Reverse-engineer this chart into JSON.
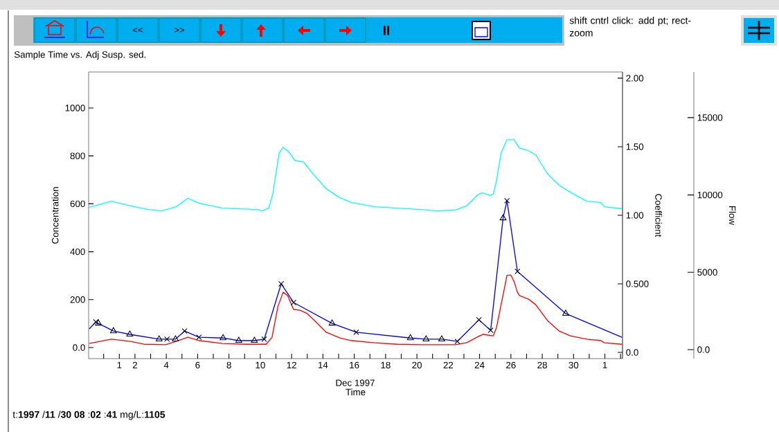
{
  "chart_data": {
    "type": "line",
    "title": "Sample Time vs. Adj Susp. sed.",
    "xlabel": "Time",
    "ylabel": "Concentration",
    "y2label": "Coefficient",
    "y3label": "Flow",
    "annotations": [
      "<<",
      ">>",
      "II",
      "shift cntrl click: add pt; rect-zoom",
      "Dec 1997",
      "t:**1997**  /**11** /**30**  **08** :**02** :**41**  mg/L:**1105**"
    ],
    "xlim": [
      "1997-11-29T01:00",
      "1998-01-02T03:00"
    ],
    "ylim": [
      -46,
      1150
    ],
    "y2lim": [
      -0.045,
      2.045
    ],
    "y3lim": [
      -580,
      17950
    ],
    "xticks": [
      {
        "value": "1997-11-30",
        "label": null
      },
      {
        "value": "1997-12-01",
        "label": "1"
      },
      {
        "value": "1997-12-02",
        "label": "2"
      },
      {
        "value": "1997-12-03",
        "label": null
      },
      {
        "value": "1997-12-04",
        "label": "4"
      },
      {
        "value": "1997-12-05",
        "label": null
      },
      {
        "value": "1997-12-06",
        "label": "6"
      },
      {
        "value": "1997-12-07",
        "label": null
      },
      {
        "value": "1997-12-08",
        "label": "8"
      },
      {
        "value": "1997-12-09",
        "label": null
      },
      {
        "value": "1997-12-10",
        "label": "10"
      },
      {
        "value": "1997-12-11",
        "label": null
      },
      {
        "value": "1997-12-12",
        "label": "12"
      },
      {
        "value": "1997-12-13",
        "label": null
      },
      {
        "value": "1997-12-14",
        "label": "14"
      },
      {
        "value": "1997-12-15",
        "label": null
      },
      {
        "value": "1997-12-16",
        "label": "16"
      },
      {
        "value": "1997-12-17",
        "label": null
      },
      {
        "value": "1997-12-18",
        "label": "18"
      },
      {
        "value": "1997-12-19",
        "label": null
      },
      {
        "value": "1997-12-20",
        "label": "20"
      },
      {
        "value": "1997-12-21",
        "label": null
      },
      {
        "value": "1997-12-22",
        "label": "22"
      },
      {
        "value": "1997-12-23",
        "label": null
      },
      {
        "value": "1997-12-24",
        "label": "24"
      },
      {
        "value": "1997-12-25",
        "label": null
      },
      {
        "value": "1997-12-26",
        "label": "26"
      },
      {
        "value": "1997-12-27",
        "label": null
      },
      {
        "value": "1997-12-28",
        "label": "28"
      },
      {
        "value": "1997-12-29",
        "label": null
      },
      {
        "value": "1997-12-30",
        "label": "30"
      },
      {
        "value": "1997-12-31",
        "label": null
      },
      {
        "value": "1998-01-01",
        "label": "1"
      },
      {
        "value": "1998-01-02",
        "label": null
      }
    ],
    "yticks": [
      {
        "value": 0,
        "label": "0.0"
      },
      200,
      400,
      600,
      800,
      1000
    ],
    "y2ticks": [
      {
        "value": 0,
        "label": "0.0"
      },
      {
        "value": 0.5,
        "label": "0.500"
      },
      {
        "value": 1,
        "label": "1.00"
      },
      {
        "value": 1.5,
        "label": "1.50"
      },
      {
        "value": 2,
        "label": "2.00"
      }
    ],
    "y3ticks": [
      {
        "value": 0,
        "label": "0.0"
      },
      5000,
      10000,
      15000
    ],
    "series": [
      {
        "axis": "y3",
        "color": "#00ffff",
        "marker": "none",
        "x": [
          "1997-11-29T02:00",
          "1997-11-30T12:00",
          "1997-12-01T17:00",
          "1997-12-02T20:00",
          "1997-12-03T17:00",
          "1997-12-04T15:00",
          "1997-12-05T09:00",
          "1997-12-06T03:00",
          "1997-12-07T14:00",
          "1997-12-09T19:00",
          "1997-12-10T03:00",
          "1997-12-10T13:00",
          "1997-12-10T19:00",
          "1997-12-11T05:00",
          "1997-12-11T11:00",
          "1997-12-11T21:00",
          "1997-12-12T05:00",
          "1997-12-12T18:00",
          "1997-12-13T11:00",
          "1997-12-14T05:00",
          "1997-12-15T02:00",
          "1997-12-15T20:00",
          "1997-12-17T07:00",
          "1997-12-18T18:00",
          "1997-12-20T06:00",
          "1997-12-21T06:00",
          "1997-12-22T11:00",
          "1997-12-23T04:00",
          "1997-12-23T22:00",
          "1997-12-24T05:00",
          "1997-12-24T16:00",
          "1997-12-24T21:00",
          "1997-12-25T02:00",
          "1997-12-25T09:00",
          "1997-12-25T18:00",
          "1997-12-26T05:00",
          "1997-12-26T13:00",
          "1997-12-27T03:00",
          "1997-12-27T14:00",
          "1997-12-28T08:00",
          "1997-12-29T02:00",
          "1997-12-29T19:00",
          "1997-12-30T20:00",
          "1997-12-31T18:00",
          "1997-12-31T23:00",
          "1998-01-02T02:00"
        ],
        "values": [
          9200,
          9600,
          9290,
          9060,
          8970,
          9240,
          9780,
          9460,
          9150,
          9060,
          8970,
          9150,
          10040,
          12720,
          13080,
          12720,
          12230,
          12140,
          11250,
          10400,
          9820,
          9510,
          9240,
          9150,
          9060,
          8970,
          9020,
          9290,
          10040,
          10130,
          9960,
          10040,
          10940,
          12720,
          13570,
          13570,
          13030,
          12860,
          12590,
          11380,
          10620,
          10180,
          9600,
          9510,
          9240,
          9110
        ]
      },
      {
        "color": "#ff0000",
        "marker": "none",
        "x": [
          "1997-11-29T02:00",
          "1997-11-30T12:00",
          "1997-12-01T17:00",
          "1997-12-02T14:00",
          "1997-12-03T23:00",
          "1997-12-04T15:00",
          "1997-12-05T09:00",
          "1997-12-06T03:00",
          "1997-12-07T14:00",
          "1997-12-09T01:00",
          "1997-12-10T09:00",
          "1997-12-10T18:00",
          "1997-12-11T03:00",
          "1997-12-11T11:00",
          "1997-12-11T18:00",
          "1997-12-12T03:00",
          "1997-12-12T13:00",
          "1997-12-13T00:00",
          "1997-12-13T11:00",
          "1997-12-14T05:00",
          "1997-12-15T02:00",
          "1997-12-15T20:00",
          "1997-12-17T07:00",
          "1997-12-18T18:00",
          "1997-12-20T06:00",
          "1997-12-22T11:00",
          "1997-12-23T04:00",
          "1997-12-23T22:00",
          "1997-12-24T05:00",
          "1997-12-24T21:00",
          "1997-12-25T02:00",
          "1997-12-25T09:00",
          "1997-12-25T18:00",
          "1997-12-26T00:00",
          "1997-12-26T05:00",
          "1997-12-26T10:00",
          "1997-12-26T13:00",
          "1997-12-27T03:00",
          "1997-12-27T14:00",
          "1997-12-28T08:00",
          "1997-12-29T02:00",
          "1997-12-29T19:00",
          "1997-12-30T20:00",
          "1997-12-31T18:00",
          "1997-12-31T23:00",
          "1998-01-02T02:00"
        ],
        "values": [
          17,
          35,
          26,
          14,
          12,
          26,
          43,
          29,
          17,
          14,
          14,
          43,
          171,
          231,
          217,
          159,
          156,
          142,
          113,
          64,
          40,
          29,
          20,
          14,
          12,
          12,
          20,
          46,
          55,
          49,
          84,
          179,
          301,
          303,
          275,
          231,
          217,
          202,
          179,
          113,
          69,
          49,
          35,
          29,
          20,
          14
        ]
      },
      {
        "color": "#0000ff",
        "marker": "none",
        "x": [
          "1997-11-29T02:00",
          "1997-11-29T12:00",
          "1997-11-29T16:00",
          "1997-11-30T15:00",
          "1997-12-01T16:00",
          "1997-12-03T13:00",
          "1997-12-04T01:00",
          "1997-12-04T14:00",
          "1997-12-05T04:00",
          "1997-12-06T02:00",
          "1997-12-07T15:00",
          "1997-12-08T15:00",
          "1997-12-09T15:00",
          "1997-12-10T06:00",
          "1997-12-11T08:00",
          "1997-12-12T03:00",
          "1997-12-14T14:00",
          "1997-12-16T03:00",
          "1997-12-19T14:00",
          "1997-12-20T14:00",
          "1997-12-21T14:00",
          "1997-12-22T14:00",
          "1997-12-23T23:00",
          "1997-12-24T17:00",
          "1997-12-25T12:00",
          "1997-12-25T18:00",
          "1997-12-26T10:00",
          "1997-12-29T12:00",
          "1998-01-02T02:00"
        ],
        "values": [
          78,
          107,
          101,
          69,
          55,
          35,
          35,
          35,
          69,
          43,
          40,
          29,
          29,
          35,
          266,
          188,
          101,
          64,
          40,
          35,
          35,
          26,
          116,
          72,
          540,
          613,
          318,
          142,
          43
        ]
      },
      {
        "type": "scatter",
        "color": "#000000",
        "marker": "cross",
        "x": [
          "1997-11-29T12:00",
          "1997-12-04T01:00",
          "1997-12-05T04:00",
          "1997-12-06T02:00",
          "1997-12-10T06:00",
          "1997-12-11T08:00",
          "1997-12-12T03:00",
          "1997-12-16T03:00",
          "1997-12-22T14:00",
          "1997-12-23T23:00",
          "1997-12-24T17:00",
          "1997-12-25T18:00",
          "1997-12-26T10:00"
        ],
        "values": [
          107,
          35,
          69,
          43,
          35,
          266,
          188,
          64,
          26,
          116,
          72,
          613,
          318
        ]
      },
      {
        "type": "scatter",
        "color": "#000000",
        "marker": "triangle",
        "x": [
          "1997-11-29T16:00",
          "1997-11-30T15:00",
          "1997-12-01T16:00",
          "1997-12-03T13:00",
          "1997-12-04T14:00",
          "1997-12-07T15:00",
          "1997-12-08T15:00",
          "1997-12-09T15:00",
          "1997-12-14T14:00",
          "1997-12-19T14:00",
          "1997-12-20T14:00",
          "1997-12-21T14:00",
          "1997-12-25T12:00",
          "1997-12-29T12:00"
        ],
        "values": [
          101,
          69,
          55,
          35,
          35,
          40,
          29,
          29,
          101,
          40,
          35,
          35,
          540,
          142
        ]
      }
    ]
  }
}
